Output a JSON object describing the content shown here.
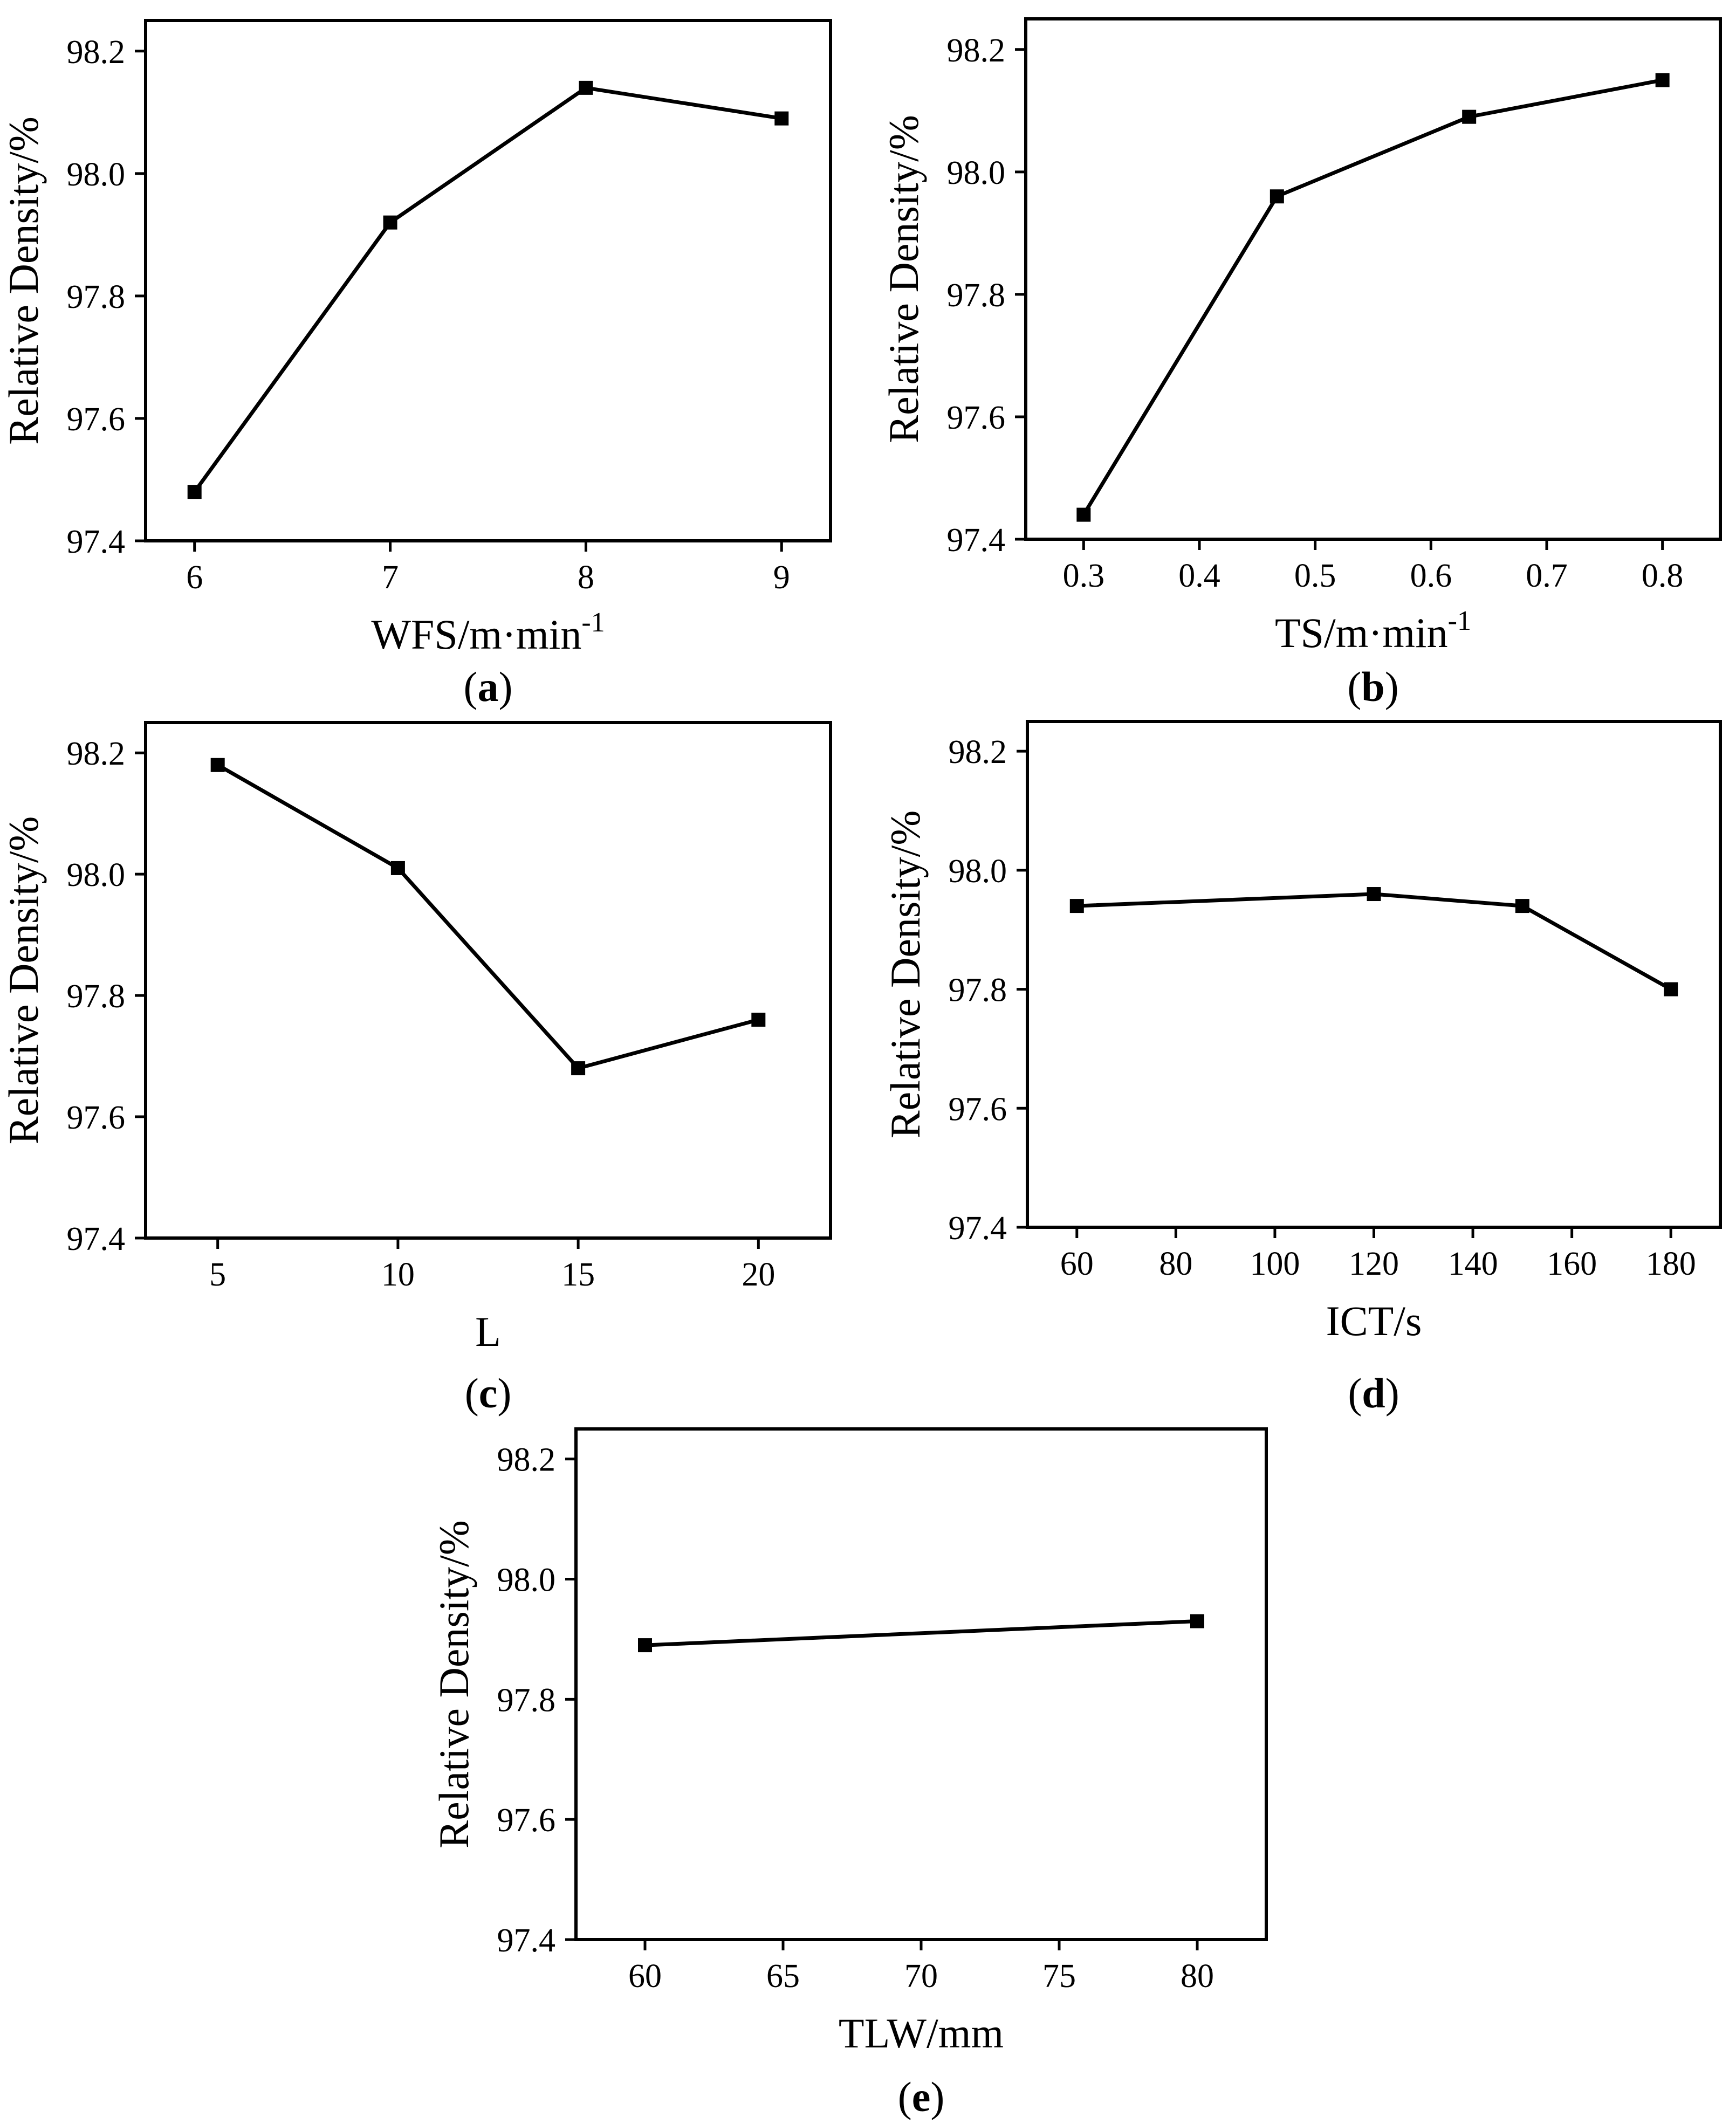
{
  "figure": {
    "caption_open": "(",
    "caption_close": ")"
  },
  "chart_data": [
    {
      "id": "a",
      "panel_label": "a",
      "type": "line",
      "xlabel": "WFS/m·min",
      "xlabel_sup": "-1",
      "ylabel": "Relative Density/%",
      "x": [
        6,
        7,
        8,
        9
      ],
      "values": [
        97.48,
        97.92,
        98.14,
        98.09
      ],
      "xlim": [
        5.75,
        9.25
      ],
      "ylim": [
        97.4,
        98.25
      ],
      "xticks": [
        6,
        7,
        8,
        9
      ],
      "xtick_labels": [
        "6",
        "7",
        "8",
        "9"
      ],
      "yticks": [
        97.4,
        97.6,
        97.8,
        98.0,
        98.2
      ],
      "ytick_labels": [
        "97.4",
        "97.6",
        "97.8",
        "98.0",
        "98.2"
      ],
      "grid": false
    },
    {
      "id": "b",
      "panel_label": "b",
      "type": "line",
      "xlabel": "TS/m·min",
      "xlabel_sup": "-1",
      "ylabel": "Relative Density/%",
      "x": [
        0.3,
        0.467,
        0.633,
        0.8
      ],
      "values": [
        97.44,
        97.96,
        98.09,
        98.15
      ],
      "xlim": [
        0.25,
        0.85
      ],
      "ylim": [
        97.4,
        98.25
      ],
      "xticks": [
        0.3,
        0.4,
        0.5,
        0.6,
        0.7,
        0.8
      ],
      "xtick_labels": [
        "0.3",
        "0.4",
        "0.5",
        "0.6",
        "0.7",
        "0.8"
      ],
      "yticks": [
        97.4,
        97.6,
        97.8,
        98.0,
        98.2
      ],
      "ytick_labels": [
        "97.4",
        "97.6",
        "97.8",
        "98.0",
        "98.2"
      ],
      "grid": false
    },
    {
      "id": "c",
      "panel_label": "c",
      "type": "line",
      "xlabel": "L",
      "xlabel_sup": "",
      "ylabel": "Relative Density/%",
      "x": [
        5,
        10,
        15,
        20
      ],
      "values": [
        98.18,
        98.01,
        97.68,
        97.76
      ],
      "xlim": [
        3,
        22
      ],
      "ylim": [
        97.4,
        98.25
      ],
      "xticks": [
        5,
        10,
        15,
        20
      ],
      "xtick_labels": [
        "5",
        "10",
        "15",
        "20"
      ],
      "yticks": [
        97.4,
        97.6,
        97.8,
        98.0,
        98.2
      ],
      "ytick_labels": [
        "97.4",
        "97.6",
        "97.8",
        "98.0",
        "98.2"
      ],
      "grid": false
    },
    {
      "id": "d",
      "panel_label": "d",
      "type": "line",
      "xlabel": "ICT/s",
      "xlabel_sup": "",
      "ylabel": "Relative Density/%",
      "x": [
        60,
        120,
        150,
        180
      ],
      "values": [
        97.94,
        97.96,
        97.94,
        97.8
      ],
      "xlim": [
        50,
        190
      ],
      "ylim": [
        97.4,
        98.25
      ],
      "xticks": [
        60,
        80,
        100,
        120,
        140,
        160,
        180
      ],
      "xtick_labels": [
        "60",
        "80",
        "100",
        "120",
        "140",
        "160",
        "180"
      ],
      "yticks": [
        97.4,
        97.6,
        97.8,
        98.0,
        98.2
      ],
      "ytick_labels": [
        "97.4",
        "97.6",
        "97.8",
        "98.0",
        "98.2"
      ],
      "grid": false
    },
    {
      "id": "e",
      "panel_label": "e",
      "type": "line",
      "xlabel": "TLW/mm",
      "xlabel_sup": "",
      "ylabel": "Relative Density/%",
      "x": [
        60,
        80
      ],
      "values": [
        97.89,
        97.93
      ],
      "xlim": [
        57.5,
        82.5
      ],
      "ylim": [
        97.4,
        98.25
      ],
      "xticks": [
        60,
        65,
        70,
        75,
        80
      ],
      "xtick_labels": [
        "60",
        "65",
        "70",
        "75",
        "80"
      ],
      "yticks": [
        97.4,
        97.6,
        97.8,
        98.0,
        98.2
      ],
      "ytick_labels": [
        "97.4",
        "97.6",
        "97.8",
        "98.0",
        "98.2"
      ],
      "grid": false
    }
  ]
}
